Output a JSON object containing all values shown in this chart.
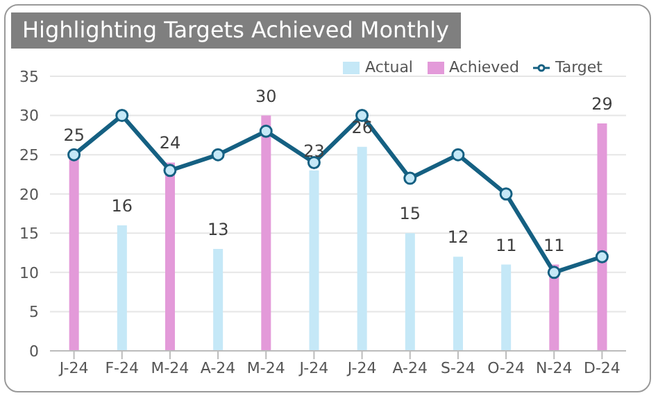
{
  "chart_data": {
    "type": "bar",
    "title": "Highlighting Targets Achieved Monthly",
    "categories": [
      "J-24",
      "F-24",
      "M-24",
      "A-24",
      "M-24",
      "J-24",
      "J-24",
      "A-24",
      "S-24",
      "O-24",
      "N-24",
      "D-24"
    ],
    "stacked": true,
    "series": [
      {
        "name": "Actual",
        "color": "#c5e8f7",
        "values": [
          null,
          16,
          null,
          13,
          null,
          23,
          26,
          15,
          12,
          11,
          null,
          null
        ],
        "value_labels": [
          null,
          "16",
          null,
          "13",
          null,
          "23",
          "26",
          "15",
          "12",
          "11",
          null,
          null
        ]
      },
      {
        "name": "Achieved",
        "color": "#e39ad9",
        "values": [
          25,
          null,
          24,
          null,
          30,
          null,
          null,
          null,
          null,
          null,
          11,
          29
        ],
        "value_labels": [
          "25",
          null,
          "24",
          null,
          "30",
          null,
          null,
          null,
          null,
          null,
          "11",
          "29"
        ]
      },
      {
        "name": "Target",
        "type": "line",
        "color": "#156082",
        "marker": "circle",
        "values": [
          25,
          30,
          23,
          25,
          28,
          24,
          30,
          22,
          25,
          20,
          10,
          12
        ]
      }
    ],
    "ylim": [
      0,
      35
    ],
    "yticks": [
      0,
      5,
      10,
      15,
      20,
      25,
      30,
      35
    ],
    "grid": "y",
    "legend": "top"
  }
}
